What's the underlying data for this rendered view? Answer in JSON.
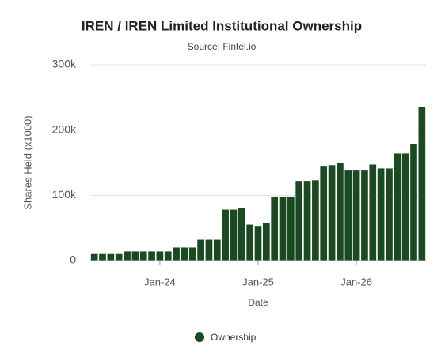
{
  "chart_data": {
    "type": "bar",
    "title": "IREN / IREN Limited Institutional Ownership",
    "subtitle": "Source: Fintel.io",
    "y_label": "Shares Held (x1000)",
    "x_label": "Date",
    "categories": [
      null,
      null,
      null,
      null,
      null,
      null,
      null,
      null,
      "Jan-24",
      null,
      null,
      null,
      null,
      null,
      null,
      null,
      null,
      null,
      null,
      null,
      "Jan-25",
      null,
      null,
      null,
      null,
      null,
      null,
      null,
      null,
      null,
      null,
      null,
      "Jan-26",
      null,
      null,
      null,
      null,
      null,
      null,
      null,
      null
    ],
    "series": [
      {
        "name": "Ownership",
        "color": "#1b4a22",
        "values": [
          10000,
          10000,
          10000,
          10000,
          14000,
          14000,
          14000,
          14000,
          14000,
          14000,
          20000,
          20000,
          20000,
          32000,
          32000,
          32000,
          78000,
          78000,
          80000,
          55000,
          53000,
          57000,
          98000,
          98000,
          98000,
          122000,
          122000,
          123000,
          145000,
          146000,
          149000,
          139000,
          139000,
          139000,
          147000,
          141000,
          141000,
          164000,
          164000,
          179000,
          235000
        ]
      }
    ],
    "ylim": [
      0,
      300000
    ],
    "yticks": [
      0,
      {
        "value": 100000,
        "label": "100k"
      },
      {
        "value": 200000,
        "label": "200k"
      },
      {
        "value": 300000,
        "label": "300k"
      }
    ],
    "grid": true
  }
}
